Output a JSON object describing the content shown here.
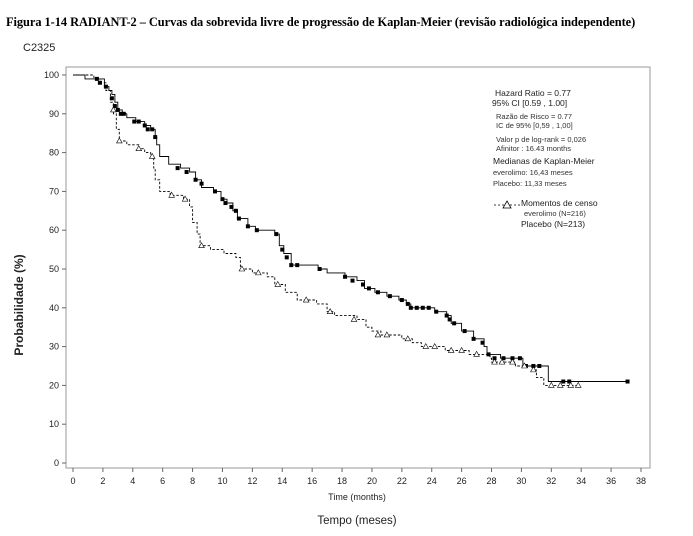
{
  "header": {
    "title": "Figura 1-14 RADIANT-2 – Curvas da sobrevida livre de progressão de Kaplan-Meier (revisão radiológica independente)",
    "code": "C2325"
  },
  "chart_data": {
    "type": "line",
    "title": "",
    "xlabel": "Time (months)",
    "xlabel_translation": "Tempo (meses)",
    "ylabel": "Probabilidade (%)",
    "xlim": [
      0,
      38
    ],
    "ylim": [
      0,
      100
    ],
    "x_ticks": [
      "0",
      "2",
      "4",
      "6",
      "8",
      "10",
      "12",
      "14",
      "16",
      "18",
      "20",
      "22",
      "24",
      "26",
      "28",
      "30",
      "32",
      "34",
      "36",
      "38"
    ],
    "y_ticks": [
      "0",
      "10",
      "20",
      "30",
      "40",
      "50",
      "60",
      "70",
      "80",
      "90",
      "100"
    ],
    "grid": false,
    "legend_placement": "top-right",
    "annotations": {
      "hazard_ratio": "Hazard Ratio = 0.77",
      "ci": "95% CI [0.59 , 1.00]",
      "razao_risco": "Razão de Risco = 0.77",
      "ic95": "IC de 95% [0,59 , 1,00]",
      "pvalue": "Valor p de log-rank = 0,026",
      "afinitor": "Afinitor : 16.43 months",
      "medians_title": "Medianas de Kaplan-Meier",
      "median_everolimo": "everolimo: 16,43 meses",
      "median_placebo": "Placebo: 11,33 meses",
      "censor_title": "Momentos de censo",
      "censor_everolimo": "everolimo (N=216)",
      "censor_placebo": "Placebo (N=213)"
    },
    "series": [
      {
        "name": "everolimo (N=216)",
        "style": "solid",
        "marker": "filled-square",
        "color": "#000000",
        "points": [
          [
            0,
            100
          ],
          [
            0.8,
            99
          ],
          [
            1.6,
            99
          ],
          [
            2.1,
            97
          ],
          [
            2.4,
            96
          ],
          [
            2.6,
            95
          ],
          [
            2.8,
            93
          ],
          [
            3.0,
            91
          ],
          [
            3.3,
            90
          ],
          [
            3.6,
            89
          ],
          [
            4.2,
            88
          ],
          [
            4.8,
            87
          ],
          [
            5.2,
            86
          ],
          [
            5.5,
            84
          ],
          [
            5.6,
            82
          ],
          [
            5.8,
            79
          ],
          [
            6.4,
            77
          ],
          [
            7.2,
            76
          ],
          [
            7.8,
            75
          ],
          [
            8.2,
            73
          ],
          [
            8.6,
            71
          ],
          [
            9.4,
            70
          ],
          [
            9.9,
            68
          ],
          [
            10.3,
            67
          ],
          [
            10.7,
            65
          ],
          [
            11.0,
            63
          ],
          [
            11.7,
            61
          ],
          [
            12.2,
            60
          ],
          [
            13.5,
            59
          ],
          [
            13.8,
            56
          ],
          [
            14.1,
            54
          ],
          [
            14.6,
            51
          ],
          [
            16.0,
            51
          ],
          [
            16.4,
            50
          ],
          [
            17.0,
            49
          ],
          [
            18.2,
            48
          ],
          [
            19.0,
            47
          ],
          [
            19.5,
            45
          ],
          [
            20.2,
            44
          ],
          [
            21.0,
            43
          ],
          [
            21.8,
            42
          ],
          [
            22.3,
            41
          ],
          [
            22.6,
            40
          ],
          [
            24.2,
            39
          ],
          [
            25.0,
            38
          ],
          [
            25.3,
            36
          ],
          [
            26.0,
            34
          ],
          [
            26.8,
            32
          ],
          [
            27.5,
            30
          ],
          [
            27.7,
            28
          ],
          [
            28.6,
            27
          ],
          [
            30.1,
            25
          ],
          [
            31.8,
            21
          ],
          [
            37.1,
            21
          ]
        ],
        "censors": [
          [
            1.6,
            99
          ],
          [
            1.8,
            98
          ],
          [
            2.2,
            97
          ],
          [
            2.6,
            94
          ],
          [
            2.8,
            92
          ],
          [
            3.0,
            91
          ],
          [
            3.2,
            90
          ],
          [
            3.4,
            90
          ],
          [
            4.1,
            88
          ],
          [
            4.4,
            88
          ],
          [
            4.8,
            87
          ],
          [
            5.0,
            86
          ],
          [
            5.3,
            86
          ],
          [
            5.5,
            84
          ],
          [
            7.0,
            76
          ],
          [
            7.6,
            75
          ],
          [
            8.2,
            73
          ],
          [
            8.6,
            72
          ],
          [
            9.5,
            70
          ],
          [
            10.0,
            68
          ],
          [
            10.2,
            67
          ],
          [
            10.6,
            66
          ],
          [
            10.9,
            65
          ],
          [
            11.1,
            63
          ],
          [
            11.7,
            61
          ],
          [
            12.3,
            60
          ],
          [
            13.6,
            59
          ],
          [
            14.0,
            55
          ],
          [
            14.3,
            53
          ],
          [
            14.6,
            51
          ],
          [
            15.0,
            51
          ],
          [
            16.5,
            50
          ],
          [
            18.2,
            48
          ],
          [
            18.7,
            47
          ],
          [
            19.4,
            46
          ],
          [
            19.8,
            45
          ],
          [
            20.4,
            44
          ],
          [
            21.2,
            43
          ],
          [
            22.0,
            42
          ],
          [
            22.4,
            41
          ],
          [
            22.6,
            40
          ],
          [
            23.0,
            40
          ],
          [
            23.4,
            40
          ],
          [
            23.8,
            40
          ],
          [
            24.3,
            39
          ],
          [
            25.0,
            38
          ],
          [
            25.2,
            37
          ],
          [
            25.5,
            36
          ],
          [
            26.2,
            34
          ],
          [
            26.8,
            32
          ],
          [
            27.4,
            31
          ],
          [
            27.8,
            28
          ],
          [
            28.2,
            27
          ],
          [
            28.8,
            27
          ],
          [
            29.4,
            27
          ],
          [
            29.9,
            27
          ],
          [
            30.3,
            25
          ],
          [
            30.8,
            25
          ],
          [
            31.2,
            25
          ],
          [
            32.8,
            21
          ],
          [
            33.2,
            21
          ],
          [
            37.1,
            21
          ]
        ]
      },
      {
        "name": "Placebo (N=213)",
        "style": "dashed",
        "marker": "open-triangle",
        "color": "#000000",
        "points": [
          [
            0,
            100
          ],
          [
            1.4,
            99
          ],
          [
            1.9,
            98
          ],
          [
            2.2,
            96
          ],
          [
            2.5,
            93
          ],
          [
            2.7,
            90
          ],
          [
            2.9,
            86
          ],
          [
            3.1,
            83
          ],
          [
            3.6,
            82
          ],
          [
            4.4,
            81
          ],
          [
            4.8,
            80
          ],
          [
            5.2,
            79
          ],
          [
            5.4,
            76
          ],
          [
            5.5,
            73
          ],
          [
            5.8,
            70
          ],
          [
            6.5,
            69
          ],
          [
            7.4,
            68
          ],
          [
            7.8,
            66
          ],
          [
            8.0,
            62
          ],
          [
            8.3,
            59
          ],
          [
            8.5,
            56
          ],
          [
            9.2,
            55
          ],
          [
            10.1,
            54
          ],
          [
            10.9,
            53
          ],
          [
            11.2,
            50
          ],
          [
            12.0,
            49
          ],
          [
            13.0,
            48
          ],
          [
            13.5,
            46
          ],
          [
            14.2,
            44
          ],
          [
            15.0,
            42
          ],
          [
            16.3,
            41
          ],
          [
            17.0,
            39
          ],
          [
            17.5,
            38
          ],
          [
            19.0,
            37
          ],
          [
            19.6,
            35
          ],
          [
            20.0,
            34
          ],
          [
            20.6,
            33
          ],
          [
            22.0,
            32
          ],
          [
            22.7,
            31
          ],
          [
            23.3,
            30
          ],
          [
            24.9,
            29
          ],
          [
            26.5,
            28
          ],
          [
            27.9,
            27
          ],
          [
            28.0,
            26
          ],
          [
            29.2,
            26
          ],
          [
            29.6,
            25
          ],
          [
            30.8,
            24
          ],
          [
            31.0,
            22
          ],
          [
            31.5,
            20
          ],
          [
            33.8,
            20
          ]
        ],
        "censors": [
          [
            2.7,
            91
          ],
          [
            3.1,
            83
          ],
          [
            4.4,
            81
          ],
          [
            5.3,
            79
          ],
          [
            6.6,
            69
          ],
          [
            7.5,
            68
          ],
          [
            8.6,
            56
          ],
          [
            11.3,
            50
          ],
          [
            12.4,
            49
          ],
          [
            13.7,
            46
          ],
          [
            15.6,
            42
          ],
          [
            17.2,
            39
          ],
          [
            18.8,
            37
          ],
          [
            20.4,
            33
          ],
          [
            21.0,
            33
          ],
          [
            22.4,
            32
          ],
          [
            23.6,
            30
          ],
          [
            24.2,
            30
          ],
          [
            25.3,
            29
          ],
          [
            26.0,
            29
          ],
          [
            27.0,
            28
          ],
          [
            28.2,
            26
          ],
          [
            28.7,
            26
          ],
          [
            29.4,
            26
          ],
          [
            30.2,
            25
          ],
          [
            30.8,
            24
          ],
          [
            32.0,
            20
          ],
          [
            32.6,
            20
          ],
          [
            33.3,
            20
          ],
          [
            33.8,
            20
          ]
        ]
      }
    ]
  }
}
